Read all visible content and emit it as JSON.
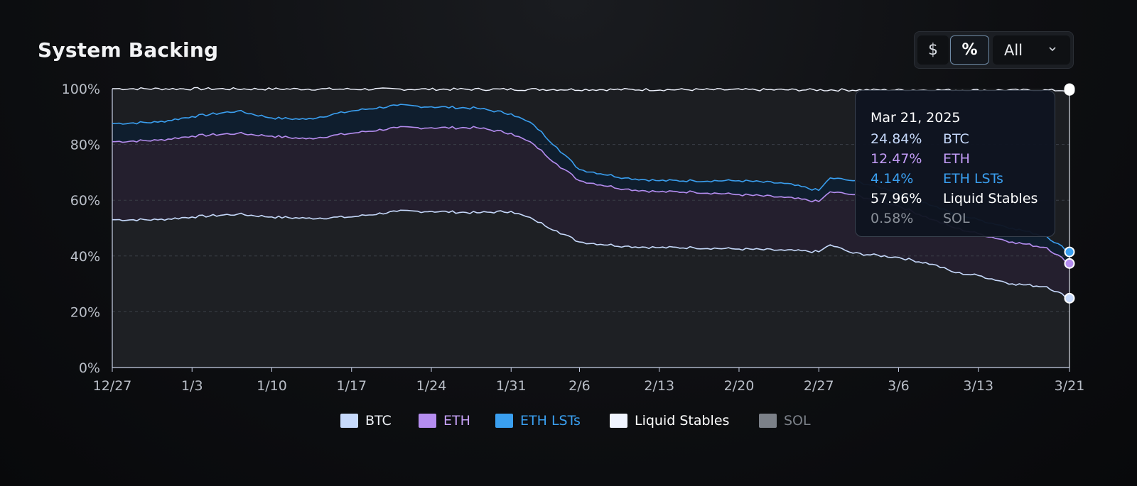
{
  "title": "System Backing",
  "controls": {
    "dollar_label": "$",
    "percent_label": "%",
    "range_label": "All",
    "active_mode": "%"
  },
  "colors": {
    "btc": "#c6d9fb",
    "eth": "#b58df0",
    "eth_lsts": "#3a9ff0",
    "liquid_stables": "#f0f4ff",
    "sol": "#7b8088",
    "axis": "#c8d0e6",
    "grid": "#3a3f47"
  },
  "tooltip": {
    "date": "Mar 21, 2025",
    "rows": [
      {
        "value": "24.84%",
        "name": "BTC",
        "color": "#c6d9fb"
      },
      {
        "value": "12.47%",
        "name": "ETH",
        "color": "#c39cf7"
      },
      {
        "value": "4.14%",
        "name": "ETH LSTs",
        "color": "#3a9ff0"
      },
      {
        "value": "57.96%",
        "name": "Liquid Stables",
        "color": "#ffffff"
      },
      {
        "value": "0.58%",
        "name": "SOL",
        "color": "#8a9099"
      }
    ]
  },
  "legend": [
    {
      "name": "BTC",
      "color": "#c6d9fb",
      "text_color": "#eef1f6"
    },
    {
      "name": "ETH",
      "color": "#b58df0",
      "text_color": "#c7a2f8"
    },
    {
      "name": "ETH LSTs",
      "color": "#3a9ff0",
      "text_color": "#3a9ff0"
    },
    {
      "name": "Liquid Stables",
      "color": "#f0f4ff",
      "text_color": "#ffffff"
    },
    {
      "name": "SOL",
      "color": "#7b8088",
      "text_color": "#7b8088"
    }
  ],
  "chart_data": {
    "type": "area",
    "stacked": true,
    "percent": true,
    "x_tick_labels": [
      "12/27",
      "1/3",
      "1/10",
      "1/17",
      "1/24",
      "1/31",
      "2/6",
      "2/13",
      "2/20",
      "2/27",
      "3/6",
      "3/13",
      "3/21"
    ],
    "y_tick_labels": [
      "0%",
      "20%",
      "40%",
      "60%",
      "80%",
      "100%"
    ],
    "ylim": [
      0,
      100
    ],
    "grid": "horizontal dashed",
    "legend_position": "bottom-center",
    "cumulative_series": [
      {
        "name": "BTC",
        "color": "#c6d9fb",
        "points": [
          [
            "12/27",
            53
          ],
          [
            "12/31",
            53
          ],
          [
            "1/3",
            54
          ],
          [
            "1/7",
            55
          ],
          [
            "1/10",
            54
          ],
          [
            "1/13",
            53.5
          ],
          [
            "1/17",
            54
          ],
          [
            "1/21",
            56
          ],
          [
            "1/24",
            56
          ],
          [
            "1/28",
            55.5
          ],
          [
            "1/31",
            56
          ],
          [
            "2/2",
            53
          ],
          [
            "2/4",
            49
          ],
          [
            "2/6",
            45
          ],
          [
            "2/10",
            43.5
          ],
          [
            "2/13",
            43
          ],
          [
            "2/16",
            43
          ],
          [
            "2/20",
            42.5
          ],
          [
            "2/24",
            42
          ],
          [
            "2/27",
            41.5
          ],
          [
            "2/28",
            44
          ],
          [
            "3/2",
            41
          ],
          [
            "3/6",
            39.5
          ],
          [
            "3/9",
            37
          ],
          [
            "3/11",
            34
          ],
          [
            "3/13",
            33
          ],
          [
            "3/16",
            30
          ],
          [
            "3/19",
            29
          ],
          [
            "3/21",
            24.84
          ]
        ]
      },
      {
        "name": "ETH",
        "color": "#b58df0",
        "points": [
          [
            "12/27",
            81
          ],
          [
            "12/31",
            81.5
          ],
          [
            "1/3",
            83
          ],
          [
            "1/7",
            84
          ],
          [
            "1/10",
            83
          ],
          [
            "1/13",
            82
          ],
          [
            "1/17",
            84
          ],
          [
            "1/21",
            86
          ],
          [
            "1/24",
            86
          ],
          [
            "1/28",
            86
          ],
          [
            "1/31",
            84
          ],
          [
            "2/2",
            80
          ],
          [
            "2/4",
            73
          ],
          [
            "2/6",
            67
          ],
          [
            "2/10",
            64
          ],
          [
            "2/13",
            63
          ],
          [
            "2/16",
            63
          ],
          [
            "2/20",
            62
          ],
          [
            "2/24",
            61
          ],
          [
            "2/27",
            59.5
          ],
          [
            "2/28",
            63
          ],
          [
            "3/2",
            62
          ],
          [
            "3/6",
            58
          ],
          [
            "3/9",
            53
          ],
          [
            "3/11",
            50
          ],
          [
            "3/13",
            48
          ],
          [
            "3/16",
            45
          ],
          [
            "3/19",
            43
          ],
          [
            "3/21",
            37.31
          ]
        ]
      },
      {
        "name": "ETH LSTs",
        "color": "#3a9ff0",
        "points": [
          [
            "12/27",
            87.5
          ],
          [
            "12/31",
            88
          ],
          [
            "1/3",
            90
          ],
          [
            "1/7",
            92
          ],
          [
            "1/10",
            89.5
          ],
          [
            "1/13",
            89
          ],
          [
            "1/17",
            92
          ],
          [
            "1/21",
            94
          ],
          [
            "1/24",
            93.5
          ],
          [
            "1/28",
            93
          ],
          [
            "1/31",
            91
          ],
          [
            "2/2",
            87
          ],
          [
            "2/4",
            79
          ],
          [
            "2/6",
            71
          ],
          [
            "2/10",
            68
          ],
          [
            "2/13",
            67
          ],
          [
            "2/16",
            67
          ],
          [
            "2/20",
            67
          ],
          [
            "2/24",
            66
          ],
          [
            "2/27",
            63.5
          ],
          [
            "2/28",
            68
          ],
          [
            "3/2",
            67
          ],
          [
            "3/6",
            63
          ],
          [
            "3/9",
            58
          ],
          [
            "3/11",
            55
          ],
          [
            "3/13",
            53
          ],
          [
            "3/16",
            50
          ],
          [
            "3/19",
            47
          ],
          [
            "3/21",
            41.45
          ]
        ]
      },
      {
        "name": "Liquid Stables",
        "color": "#f0f4ff",
        "points": [
          [
            "12/27",
            100
          ],
          [
            "3/21",
            99.41
          ]
        ]
      },
      {
        "name": "SOL",
        "color": "#7b8088",
        "points": [
          [
            "12/27",
            100
          ],
          [
            "3/21",
            100
          ]
        ]
      }
    ],
    "highlight_date": "3/21"
  }
}
